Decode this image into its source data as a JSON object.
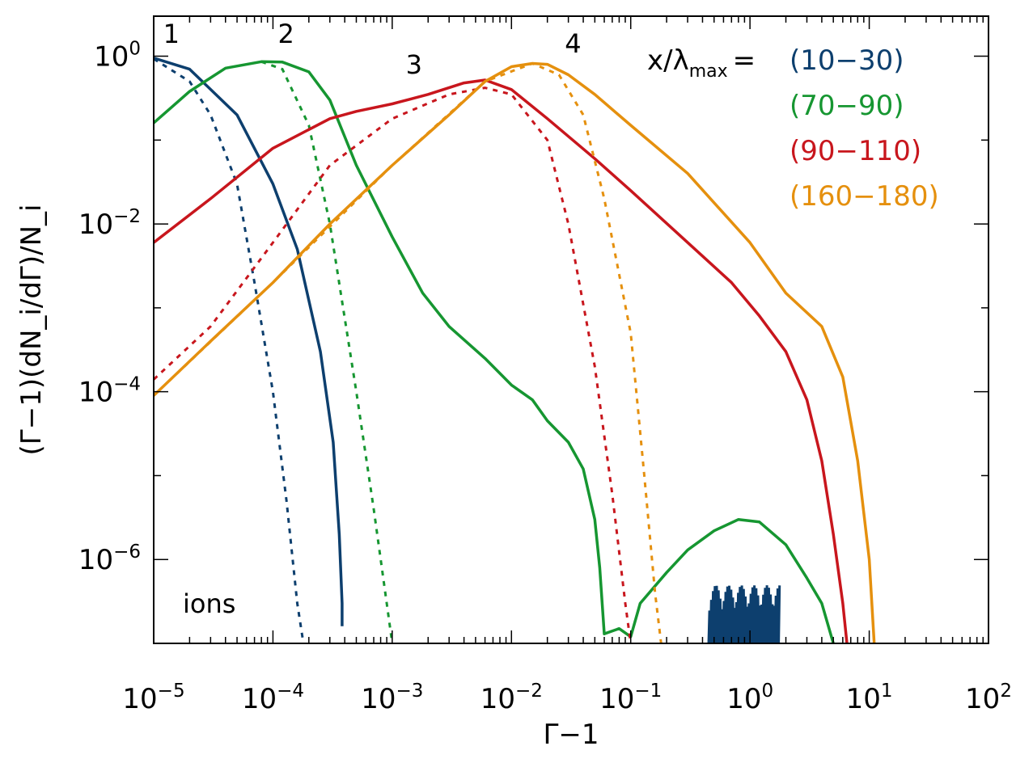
{
  "chart_data": {
    "type": "line",
    "scale": {
      "x": "log",
      "y": "log"
    },
    "xlim": [
      1e-05,
      100
    ],
    "ylim": [
      1e-07,
      3
    ],
    "xlabel": "Γ−1",
    "ylabel": "(Γ−1)(dN_i/dΓ)/N_i",
    "x_ticks": [
      {
        "base": "10",
        "exp": "−5",
        "value": 1e-05
      },
      {
        "base": "10",
        "exp": "−4",
        "value": 0.0001
      },
      {
        "base": "10",
        "exp": "−3",
        "value": 0.001
      },
      {
        "base": "10",
        "exp": "−2",
        "value": 0.01
      },
      {
        "base": "10",
        "exp": "−1",
        "value": 0.1
      },
      {
        "base": "10",
        "exp": "0",
        "value": 1
      },
      {
        "base": "10",
        "exp": "1",
        "value": 10
      },
      {
        "base": "10",
        "exp": "2",
        "value": 100
      }
    ],
    "y_ticks": [
      {
        "base": "10",
        "exp": "0",
        "value": 1
      },
      {
        "base": "10",
        "exp": "−2",
        "value": 0.01
      },
      {
        "base": "10",
        "exp": "−4",
        "value": 0.0001
      },
      {
        "base": "10",
        "exp": "−6",
        "value": 1e-06
      }
    ],
    "legend": {
      "title": "x/λ",
      "title_sub": "max",
      "title_suffix": "=",
      "placement": "top-right"
    },
    "annotation": "ions",
    "series": [
      {
        "name": "(10−30)",
        "label": "1",
        "color": "#0d3f6e",
        "solid": [
          [
            1e-05,
            0.95
          ],
          [
            2e-05,
            0.7
          ],
          [
            5e-05,
            0.2
          ],
          [
            0.0001,
            0.03
          ],
          [
            0.00016,
            0.005
          ],
          [
            0.00025,
            0.0003
          ],
          [
            0.00032,
            2.5e-05
          ],
          [
            0.00036,
            2e-06
          ],
          [
            0.00038,
            3e-07
          ],
          [
            0.00038,
            1.6e-07
          ]
        ],
        "dashed": [
          [
            1e-05,
            0.93
          ],
          [
            2e-05,
            0.5
          ],
          [
            3e-05,
            0.2
          ],
          [
            5e-05,
            0.03
          ],
          [
            7e-05,
            0.002
          ],
          [
            0.0001,
            0.0001
          ],
          [
            0.00013,
            5e-06
          ],
          [
            0.00016,
            3e-07
          ],
          [
            0.00018,
            1e-07
          ]
        ],
        "noise_region": [
          0.45,
          1.8
        ]
      },
      {
        "name": "(70−90)",
        "label": "2",
        "color": "#169631",
        "solid": [
          [
            1e-05,
            0.16
          ],
          [
            2e-05,
            0.38
          ],
          [
            4e-05,
            0.72
          ],
          [
            8e-05,
            0.86
          ],
          [
            0.00012,
            0.85
          ],
          [
            0.0002,
            0.65
          ],
          [
            0.0003,
            0.3
          ],
          [
            0.0005,
            0.05
          ],
          [
            0.001,
            0.007
          ],
          [
            0.0018,
            0.0015
          ],
          [
            0.003,
            0.0006
          ],
          [
            0.006,
            0.00025
          ],
          [
            0.01,
            0.00012
          ],
          [
            0.015,
            8e-05
          ],
          [
            0.02,
            4.5e-05
          ],
          [
            0.03,
            2.5e-05
          ],
          [
            0.04,
            1.2e-05
          ],
          [
            0.05,
            3e-06
          ],
          [
            0.055,
            8e-07
          ],
          [
            0.06,
            1.3e-07
          ],
          [
            0.08,
            1.5e-07
          ],
          [
            0.1,
            1.2e-07
          ],
          [
            0.12,
            3e-07
          ],
          [
            0.2,
            7e-07
          ],
          [
            0.3,
            1.3e-06
          ],
          [
            0.5,
            2.2e-06
          ],
          [
            0.8,
            3e-06
          ],
          [
            1.2,
            2.8e-06
          ],
          [
            2,
            1.5e-06
          ],
          [
            3,
            6e-07
          ],
          [
            4,
            3e-07
          ],
          [
            5,
            1e-07
          ]
        ],
        "dashed": [
          [
            8e-05,
            0.86
          ],
          [
            0.00012,
            0.7
          ],
          [
            0.0002,
            0.15
          ],
          [
            0.0003,
            0.01
          ],
          [
            0.0005,
            0.0001
          ],
          [
            0.0007,
            4e-06
          ],
          [
            0.0009,
            3e-07
          ],
          [
            0.001,
            1e-07
          ]
        ]
      },
      {
        "name": "(90−110)",
        "label": "3",
        "color": "#c8161d",
        "solid": [
          [
            1e-05,
            0.006
          ],
          [
            3e-05,
            0.02
          ],
          [
            0.0001,
            0.08
          ],
          [
            0.0003,
            0.18
          ],
          [
            0.0005,
            0.22
          ],
          [
            0.001,
            0.27
          ],
          [
            0.002,
            0.35
          ],
          [
            0.004,
            0.48
          ],
          [
            0.006,
            0.52
          ],
          [
            0.01,
            0.4
          ],
          [
            0.02,
            0.18
          ],
          [
            0.05,
            0.06
          ],
          [
            0.1,
            0.025
          ],
          [
            0.3,
            0.006
          ],
          [
            0.7,
            0.002
          ],
          [
            1.2,
            0.0008
          ],
          [
            2,
            0.0003
          ],
          [
            3,
            8e-05
          ],
          [
            4,
            1.5e-05
          ],
          [
            5,
            2e-06
          ],
          [
            6,
            3e-07
          ],
          [
            6.5,
            1e-07
          ]
        ],
        "dashed": [
          [
            1e-05,
            0.00014
          ],
          [
            3e-05,
            0.0006
          ],
          [
            0.0001,
            0.006
          ],
          [
            0.0003,
            0.05
          ],
          [
            0.001,
            0.18
          ],
          [
            0.003,
            0.35
          ],
          [
            0.006,
            0.42
          ],
          [
            0.01,
            0.35
          ],
          [
            0.02,
            0.1
          ],
          [
            0.03,
            0.01
          ],
          [
            0.05,
            0.0002
          ],
          [
            0.07,
            6e-06
          ],
          [
            0.09,
            3e-07
          ],
          [
            0.1,
            1e-07
          ]
        ]
      },
      {
        "name": "(160−180)",
        "label": "4",
        "color": "#e5900e",
        "solid": [
          [
            1e-05,
            9e-05
          ],
          [
            3e-05,
            0.0004
          ],
          [
            0.0001,
            0.002
          ],
          [
            0.0003,
            0.01
          ],
          [
            0.001,
            0.05
          ],
          [
            0.003,
            0.2
          ],
          [
            0.006,
            0.5
          ],
          [
            0.01,
            0.75
          ],
          [
            0.015,
            0.82
          ],
          [
            0.02,
            0.8
          ],
          [
            0.03,
            0.6
          ],
          [
            0.05,
            0.35
          ],
          [
            0.1,
            0.15
          ],
          [
            0.3,
            0.04
          ],
          [
            1,
            0.006
          ],
          [
            2,
            0.0015
          ],
          [
            4,
            0.0006
          ],
          [
            6,
            0.00015
          ],
          [
            8,
            1.5e-05
          ],
          [
            10,
            1e-06
          ],
          [
            11,
            1e-07
          ]
        ],
        "dashed": [
          [
            1e-05,
            9e-05
          ],
          [
            0.0001,
            0.002
          ],
          [
            0.001,
            0.05
          ],
          [
            0.006,
            0.5
          ],
          [
            0.015,
            0.82
          ],
          [
            0.025,
            0.6
          ],
          [
            0.04,
            0.2
          ],
          [
            0.06,
            0.02
          ],
          [
            0.1,
            0.0005
          ],
          [
            0.13,
            1e-05
          ],
          [
            0.16,
            4e-07
          ],
          [
            0.18,
            1e-07
          ]
        ]
      }
    ]
  }
}
